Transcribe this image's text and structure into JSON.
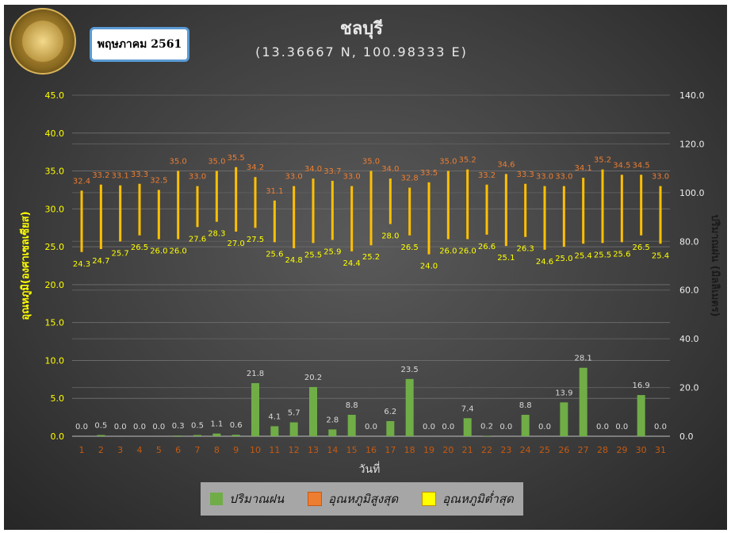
{
  "header": {
    "month": "พฤษภาคม 2561",
    "station": "ชลบุรี",
    "coords": "(13.36667 N, 100.98333 E)",
    "logo_text": "กรมอุตุนิยมวิทยา METEOROLOGICAL DEPARTMENT"
  },
  "chart_data": {
    "type": "bar",
    "title": "ชลบุรี",
    "subtitle": "(13.36667 N, 100.98333 E)",
    "xlabel": "วันที่",
    "ylabel": "อุณหภูมิ(องศาเซลเซียส)",
    "y2label": "ปริมาณฝน (มิลลิเมตร)",
    "ylim": [
      0,
      45
    ],
    "y2lim": [
      0,
      140
    ],
    "yticks": [
      "0.0",
      "5.0",
      "10.0",
      "15.0",
      "20.0",
      "25.0",
      "30.0",
      "35.0",
      "40.0",
      "45.0"
    ],
    "y2ticks": [
      "0.0",
      "20.0",
      "40.0",
      "60.0",
      "80.0",
      "100.0",
      "120.0",
      "140.0"
    ],
    "categories": [
      "1",
      "2",
      "3",
      "4",
      "5",
      "6",
      "7",
      "8",
      "9",
      "10",
      "11",
      "12",
      "13",
      "14",
      "15",
      "16",
      "17",
      "18",
      "19",
      "20",
      "21",
      "22",
      "23",
      "24",
      "25",
      "26",
      "27",
      "28",
      "29",
      "30",
      "31"
    ],
    "legend_position": "bottom",
    "series": [
      {
        "name": "ปริมาณฝน",
        "axis": "right",
        "color": "#70ad47",
        "values": [
          0.0,
          0.5,
          0.0,
          0.0,
          0.0,
          0.3,
          0.5,
          1.1,
          0.6,
          21.8,
          4.1,
          5.7,
          20.2,
          2.8,
          8.8,
          0.0,
          6.2,
          23.5,
          0.0,
          0.0,
          7.4,
          0.2,
          0.0,
          8.8,
          0.0,
          13.9,
          28.1,
          0.0,
          0.0,
          16.9,
          0.0
        ]
      },
      {
        "name": "อุณหภูมิสูงสุด",
        "axis": "left",
        "color": "#ed7d31",
        "values": [
          32.4,
          33.2,
          33.1,
          33.3,
          32.5,
          35.0,
          33.0,
          35.0,
          35.5,
          34.2,
          31.1,
          33.0,
          34.0,
          33.7,
          33.0,
          35.0,
          34.0,
          32.8,
          33.5,
          35.0,
          35.2,
          33.2,
          34.6,
          33.3,
          33.0,
          33.0,
          34.1,
          35.2,
          34.5,
          34.5,
          33.0
        ]
      },
      {
        "name": "อุณหภูมิต่ำสุด",
        "axis": "left",
        "color": "#ffff00",
        "values": [
          24.3,
          24.7,
          25.7,
          26.5,
          26.0,
          26.0,
          27.6,
          28.3,
          27.0,
          27.5,
          25.6,
          24.8,
          25.5,
          25.9,
          24.4,
          25.2,
          28.0,
          26.5,
          24.0,
          26.0,
          26.0,
          26.6,
          25.1,
          26.3,
          24.6,
          25.0,
          25.4,
          25.5,
          25.6,
          26.5,
          25.4
        ]
      }
    ]
  }
}
